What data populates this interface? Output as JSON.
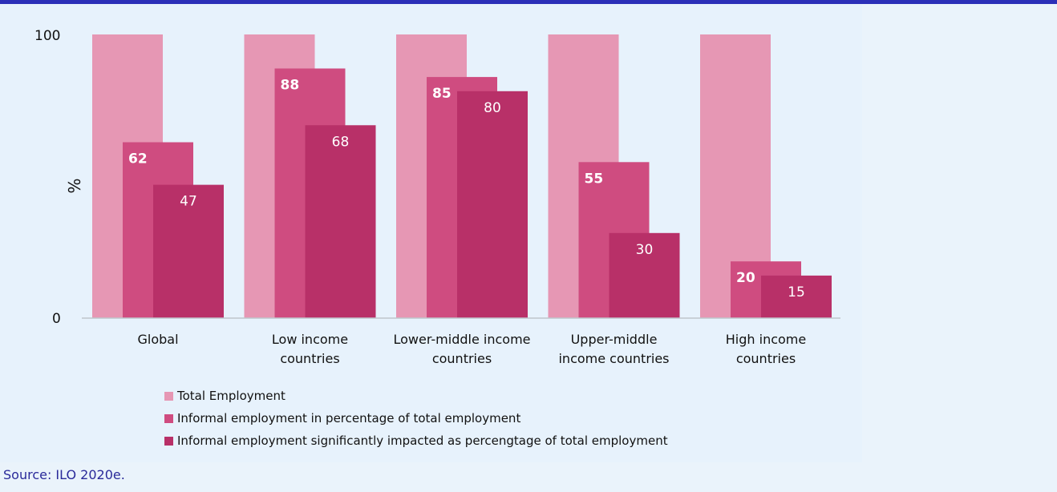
{
  "chart_data": {
    "type": "bar",
    "ylabel": "%",
    "ylim": [
      0,
      100
    ],
    "yticks": [
      "0",
      "100"
    ],
    "categories": [
      [
        "Global"
      ],
      [
        "Low income",
        "countries"
      ],
      [
        "Lower-middle income",
        "countries"
      ],
      [
        "Upper-middle",
        "income countries"
      ],
      [
        "High income",
        "countries"
      ]
    ],
    "series": [
      {
        "name": "Total Employment",
        "values": [
          100,
          100,
          100,
          100,
          100
        ],
        "color": "#e697b4",
        "show_labels": false
      },
      {
        "name": "Informal employment in percentage of total employment",
        "values": [
          62,
          88,
          85,
          55,
          20
        ],
        "color": "#cf4c80",
        "show_labels": true,
        "label_weight": "bold"
      },
      {
        "name": "Informal employment significantly impacted as percengtage of total employment",
        "values": [
          47,
          68,
          80,
          30,
          15
        ],
        "color": "#b83068",
        "show_labels": true,
        "label_weight": "normal"
      }
    ],
    "legend_position": "bottom",
    "grid": false,
    "axis_color": "#bfc6cc"
  },
  "source": "Source: ILO 2020e."
}
